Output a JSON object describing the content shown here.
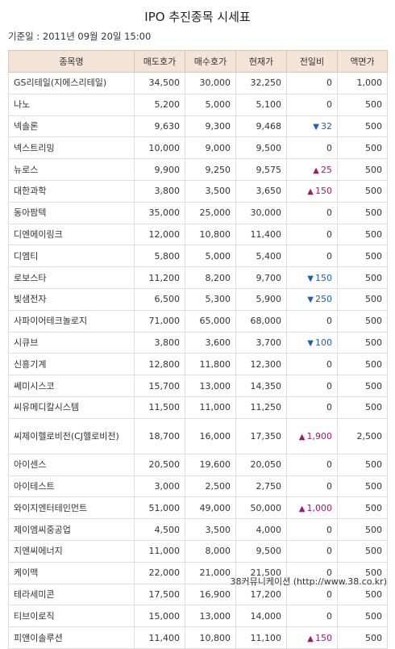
{
  "title": "IPO 추진종목 시세표",
  "base_date": "기준일 : 2011년 09월 20일 15:00",
  "headers": [
    "종목명",
    "매도호가",
    "매수호가",
    "현재가",
    "전일비",
    "액면가"
  ],
  "colors": {
    "header_bg": "#f3e4d7",
    "up": "#9b1b6f",
    "down": "#1f5fb5"
  },
  "rows": [
    {
      "name": "GS리테일(지에스리테일)",
      "ask": "34,500",
      "bid": "30,000",
      "price": "32,250",
      "dir": "",
      "change": "0",
      "par": "1,000"
    },
    {
      "name": "나노",
      "ask": "5,200",
      "bid": "5,000",
      "price": "5,100",
      "dir": "",
      "change": "0",
      "par": "500"
    },
    {
      "name": "넥솔론",
      "ask": "9,630",
      "bid": "9,300",
      "price": "9,468",
      "dir": "down",
      "change": "32",
      "par": "500"
    },
    {
      "name": "넥스트리밍",
      "ask": "10,000",
      "bid": "9,000",
      "price": "9,500",
      "dir": "",
      "change": "0",
      "par": "500"
    },
    {
      "name": "뉴로스",
      "ask": "9,900",
      "bid": "9,250",
      "price": "9,575",
      "dir": "up",
      "change": "25",
      "par": "500"
    },
    {
      "name": "대한과학",
      "ask": "3,800",
      "bid": "3,500",
      "price": "3,650",
      "dir": "up",
      "change": "150",
      "par": "500"
    },
    {
      "name": "동아팜텍",
      "ask": "35,000",
      "bid": "25,000",
      "price": "30,000",
      "dir": "",
      "change": "0",
      "par": "500"
    },
    {
      "name": "디엔에이링크",
      "ask": "12,000",
      "bid": "10,800",
      "price": "11,400",
      "dir": "",
      "change": "0",
      "par": "500"
    },
    {
      "name": "디엠티",
      "ask": "5,800",
      "bid": "5,000",
      "price": "5,400",
      "dir": "",
      "change": "0",
      "par": "500"
    },
    {
      "name": "로보스타",
      "ask": "11,200",
      "bid": "8,200",
      "price": "9,700",
      "dir": "down",
      "change": "150",
      "par": "500"
    },
    {
      "name": "빛샘전자",
      "ask": "6,500",
      "bid": "5,300",
      "price": "5,900",
      "dir": "down",
      "change": "250",
      "par": "500"
    },
    {
      "name": "사파이어테크놀로지",
      "ask": "71,000",
      "bid": "65,000",
      "price": "68,000",
      "dir": "",
      "change": "0",
      "par": "500"
    },
    {
      "name": "시큐브",
      "ask": "3,800",
      "bid": "3,600",
      "price": "3,700",
      "dir": "down",
      "change": "100",
      "par": "500"
    },
    {
      "name": "신흥기계",
      "ask": "12,800",
      "bid": "11,800",
      "price": "12,300",
      "dir": "",
      "change": "0",
      "par": "500"
    },
    {
      "name": "쎄미시스코",
      "ask": "15,700",
      "bid": "13,000",
      "price": "14,350",
      "dir": "",
      "change": "0",
      "par": "500"
    },
    {
      "name": "씨유메디칼시스템",
      "ask": "11,500",
      "bid": "11,000",
      "price": "11,250",
      "dir": "",
      "change": "0",
      "par": "500"
    },
    {
      "name": "씨제이헬로비전(CJ헬로비전)",
      "ask": "18,700",
      "bid": "16,000",
      "price": "17,350",
      "dir": "up",
      "change": "1,900",
      "par": "2,500"
    },
    {
      "name": "아이센스",
      "ask": "20,500",
      "bid": "19,600",
      "price": "20,050",
      "dir": "",
      "change": "0",
      "par": "500"
    },
    {
      "name": "아이테스트",
      "ask": "3,000",
      "bid": "2,500",
      "price": "2,750",
      "dir": "",
      "change": "0",
      "par": "500"
    },
    {
      "name": "와이지엔터테인먼트",
      "ask": "51,000",
      "bid": "49,000",
      "price": "50,000",
      "dir": "up",
      "change": "1,000",
      "par": "500"
    },
    {
      "name": "제이엠씨중공업",
      "ask": "4,500",
      "bid": "3,500",
      "price": "4,000",
      "dir": "",
      "change": "0",
      "par": "500"
    },
    {
      "name": "지엔씨에너지",
      "ask": "11,000",
      "bid": "8,000",
      "price": "9,500",
      "dir": "",
      "change": "0",
      "par": "500"
    },
    {
      "name": "케이맥",
      "ask": "22,000",
      "bid": "21,000",
      "price": "21,500",
      "dir": "",
      "change": "0",
      "par": "500"
    },
    {
      "name": "테라세미콘",
      "ask": "17,500",
      "bid": "16,900",
      "price": "17,200",
      "dir": "",
      "change": "0",
      "par": "500"
    },
    {
      "name": "티브이로직",
      "ask": "15,000",
      "bid": "13,000",
      "price": "14,000",
      "dir": "",
      "change": "0",
      "par": "500"
    },
    {
      "name": "피앤이솔루션",
      "ask": "11,400",
      "bid": "10,800",
      "price": "11,100",
      "dir": "up",
      "change": "150",
      "par": "500"
    }
  ],
  "source": "38커뮤니케이션 (http://www.38.co.kr)"
}
